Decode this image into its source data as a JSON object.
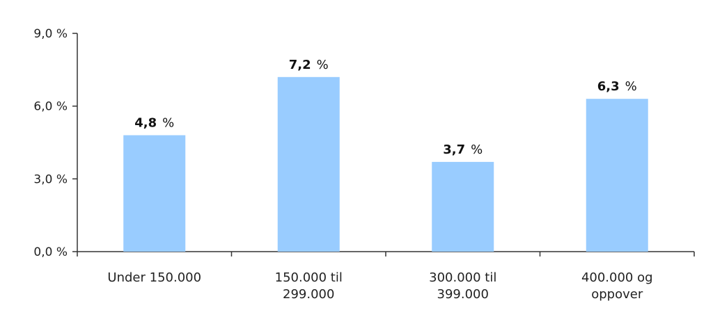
{
  "chart_data": {
    "type": "bar",
    "categories": [
      [
        "Under 150.000"
      ],
      [
        "150.000 til",
        "299.000"
      ],
      [
        "300.000 til",
        "399.000"
      ],
      [
        "400.000 og",
        "oppover"
      ]
    ],
    "values": [
      4.8,
      7.2,
      3.7,
      6.3
    ],
    "data_labels": [
      {
        "number": "4,8",
        "unit": "%"
      },
      {
        "number": "7,2",
        "unit": "%"
      },
      {
        "number": "3,7",
        "unit": "%"
      },
      {
        "number": "6,3",
        "unit": "%"
      }
    ],
    "ylim": [
      0,
      9
    ],
    "y_ticks": [
      {
        "value": 0,
        "label": "0,0 %"
      },
      {
        "value": 3,
        "label": "3,0 %"
      },
      {
        "value": 6,
        "label": "6,0 %"
      },
      {
        "value": 9,
        "label": "9,0 %"
      }
    ],
    "grid": false,
    "legend": "none",
    "colors": {
      "bar": "#99CCFF",
      "axis": "#333333",
      "text": "#222222"
    }
  }
}
